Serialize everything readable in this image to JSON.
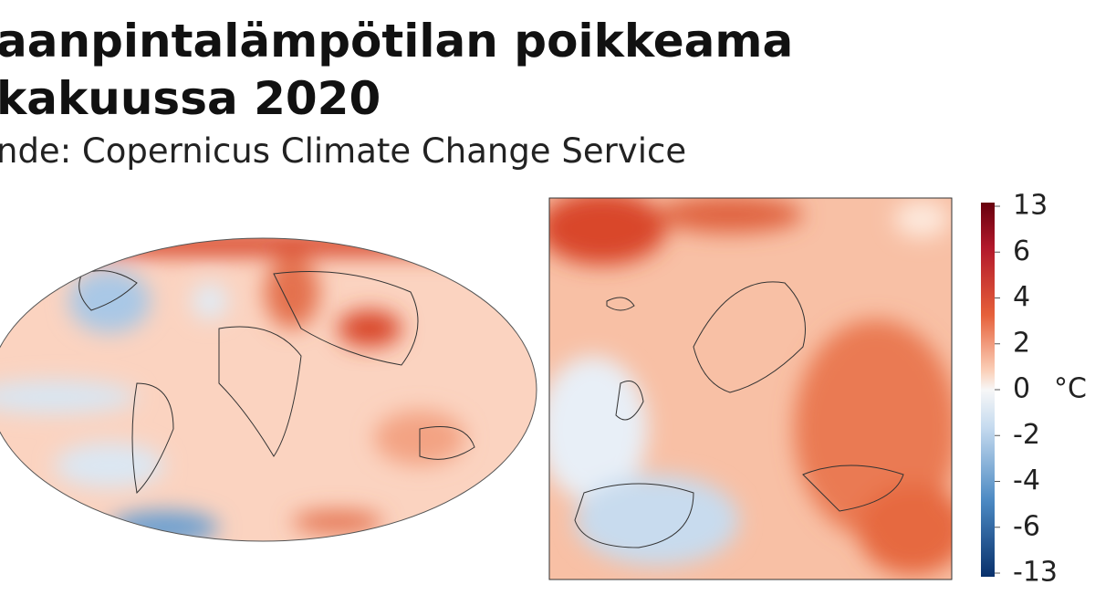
{
  "header": {
    "title_lines": [
      "aanpintalämpötilan poikkeama",
      "kakuussa 2020"
    ],
    "source": "nde: Copernicus Climate Change Service"
  },
  "colorbar": {
    "ticks": [
      13,
      6,
      4,
      2,
      0,
      -2,
      -4,
      -6,
      -13
    ],
    "unit": "°C"
  }
}
